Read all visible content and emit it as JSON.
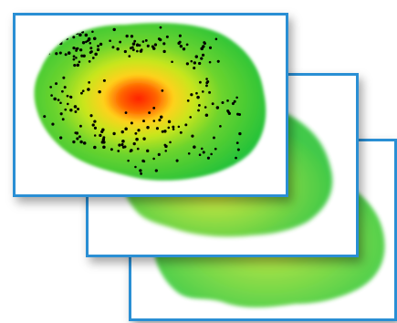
{
  "figure": {
    "description_type": "stacked heatmap layers",
    "layers": [
      {
        "id": "front",
        "style": "intensity heatmap with point overlay"
      },
      {
        "id": "middle",
        "style": "faded heatmap"
      },
      {
        "id": "back",
        "style": "faded heatmap"
      }
    ]
  },
  "colors": {
    "border": "#2a8fd4",
    "low": "#22cc33",
    "mid": "#c8e61e",
    "high": "#ff2a00",
    "point": "#000000"
  },
  "point_count": 260
}
